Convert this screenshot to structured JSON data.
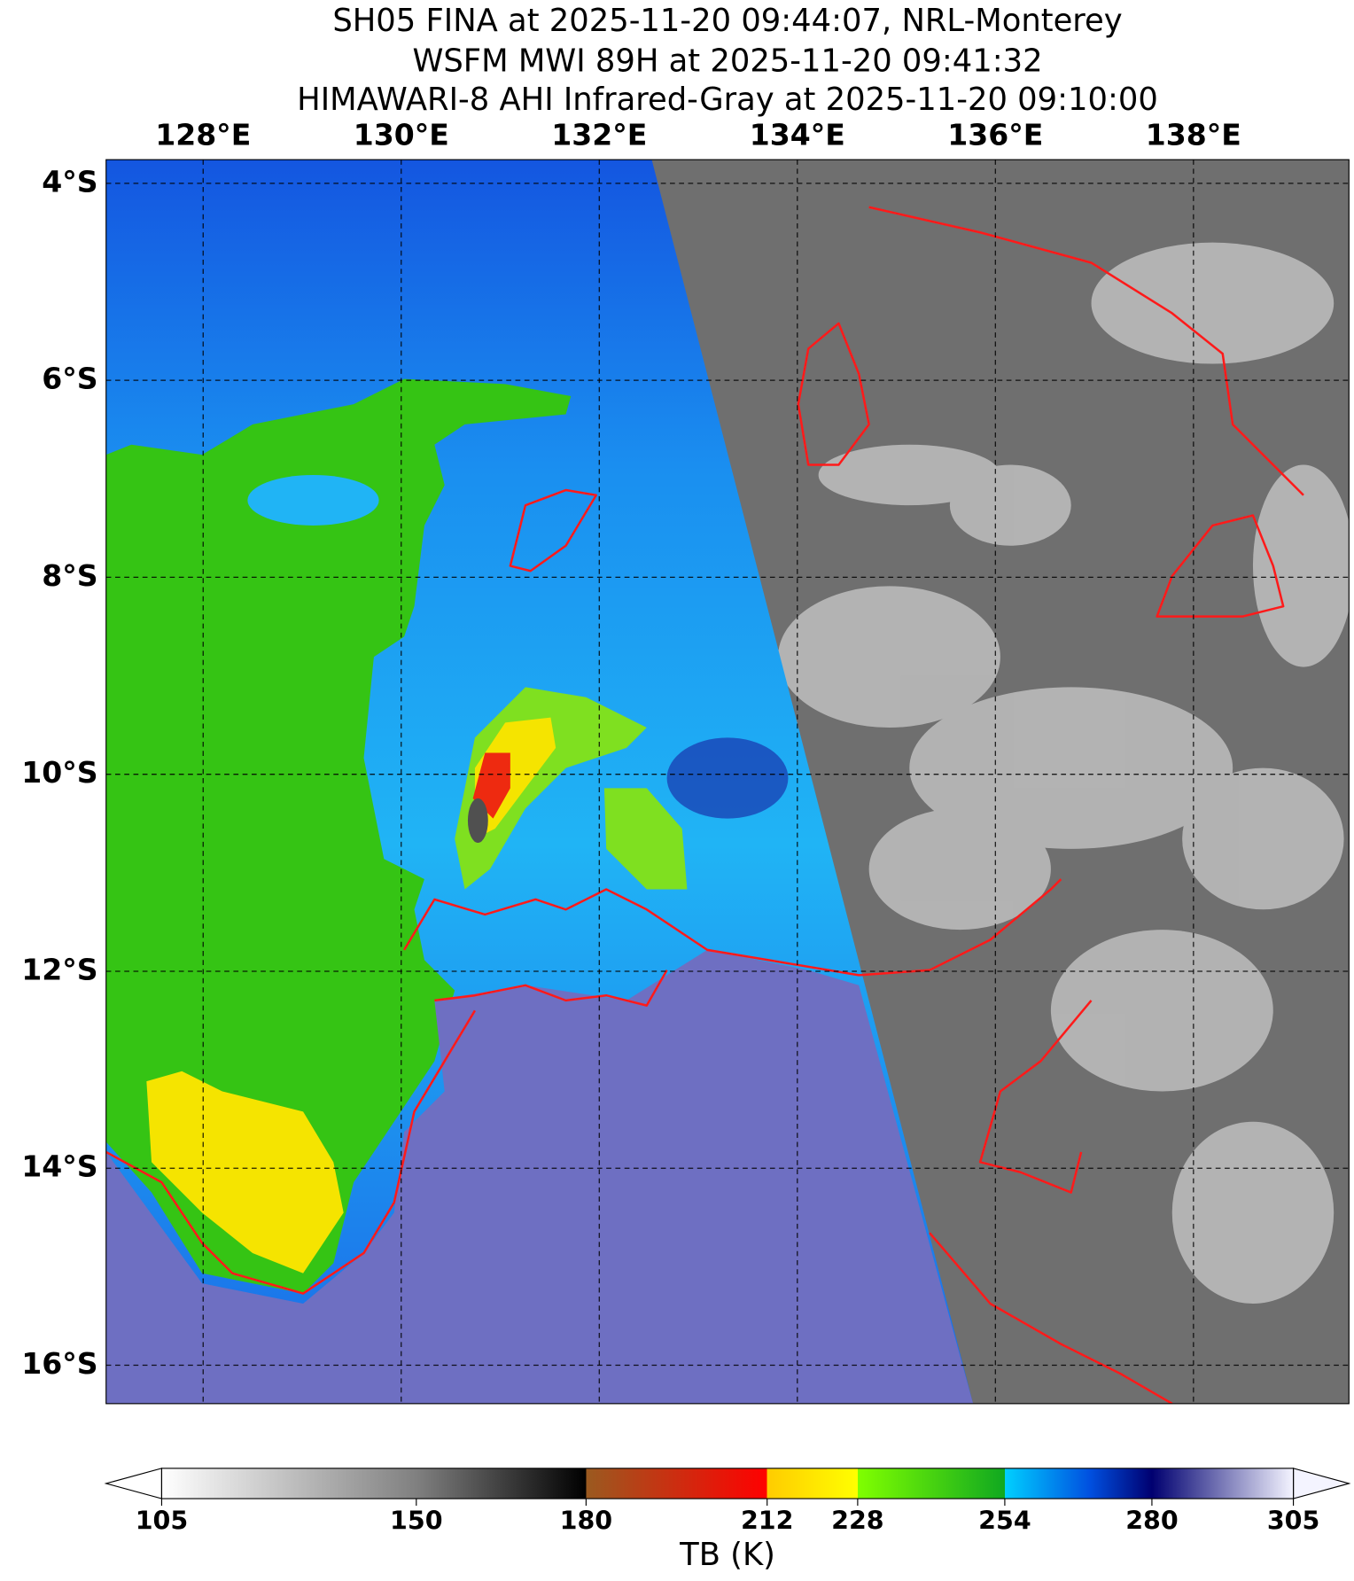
{
  "title": [
    "SH05 FINA at 2025-11-20 09:44:07, NRL-Monterey",
    "WSFM MWI 89H at 2025-11-20 09:41:32",
    "HIMAWARI-8 AHI Infrared-Gray at 2025-11-20 09:10:00"
  ],
  "map": {
    "xlim": [
      127.02,
      139.57
    ],
    "ylim": [
      -16.39,
      -3.76
    ],
    "lon_ticks": [
      {
        "value": 128,
        "label": "128°E"
      },
      {
        "value": 130,
        "label": "130°E"
      },
      {
        "value": 132,
        "label": "132°E"
      },
      {
        "value": 134,
        "label": "134°E"
      },
      {
        "value": 136,
        "label": "136°E"
      },
      {
        "value": 138,
        "label": "138°E"
      }
    ],
    "lat_ticks": [
      {
        "value": -4,
        "label": "4°S"
      },
      {
        "value": -6,
        "label": "6°S"
      },
      {
        "value": -8,
        "label": "8°S"
      },
      {
        "value": -10,
        "label": "10°S"
      },
      {
        "value": -12,
        "label": "12°S"
      },
      {
        "value": -14,
        "label": "14°S"
      },
      {
        "value": -16,
        "label": "16°S"
      }
    ]
  },
  "colorbar": {
    "vlim": [
      105,
      305
    ],
    "ticks": [
      105,
      150,
      180,
      212,
      228,
      254,
      280,
      305
    ],
    "label": "TB (K)"
  }
}
